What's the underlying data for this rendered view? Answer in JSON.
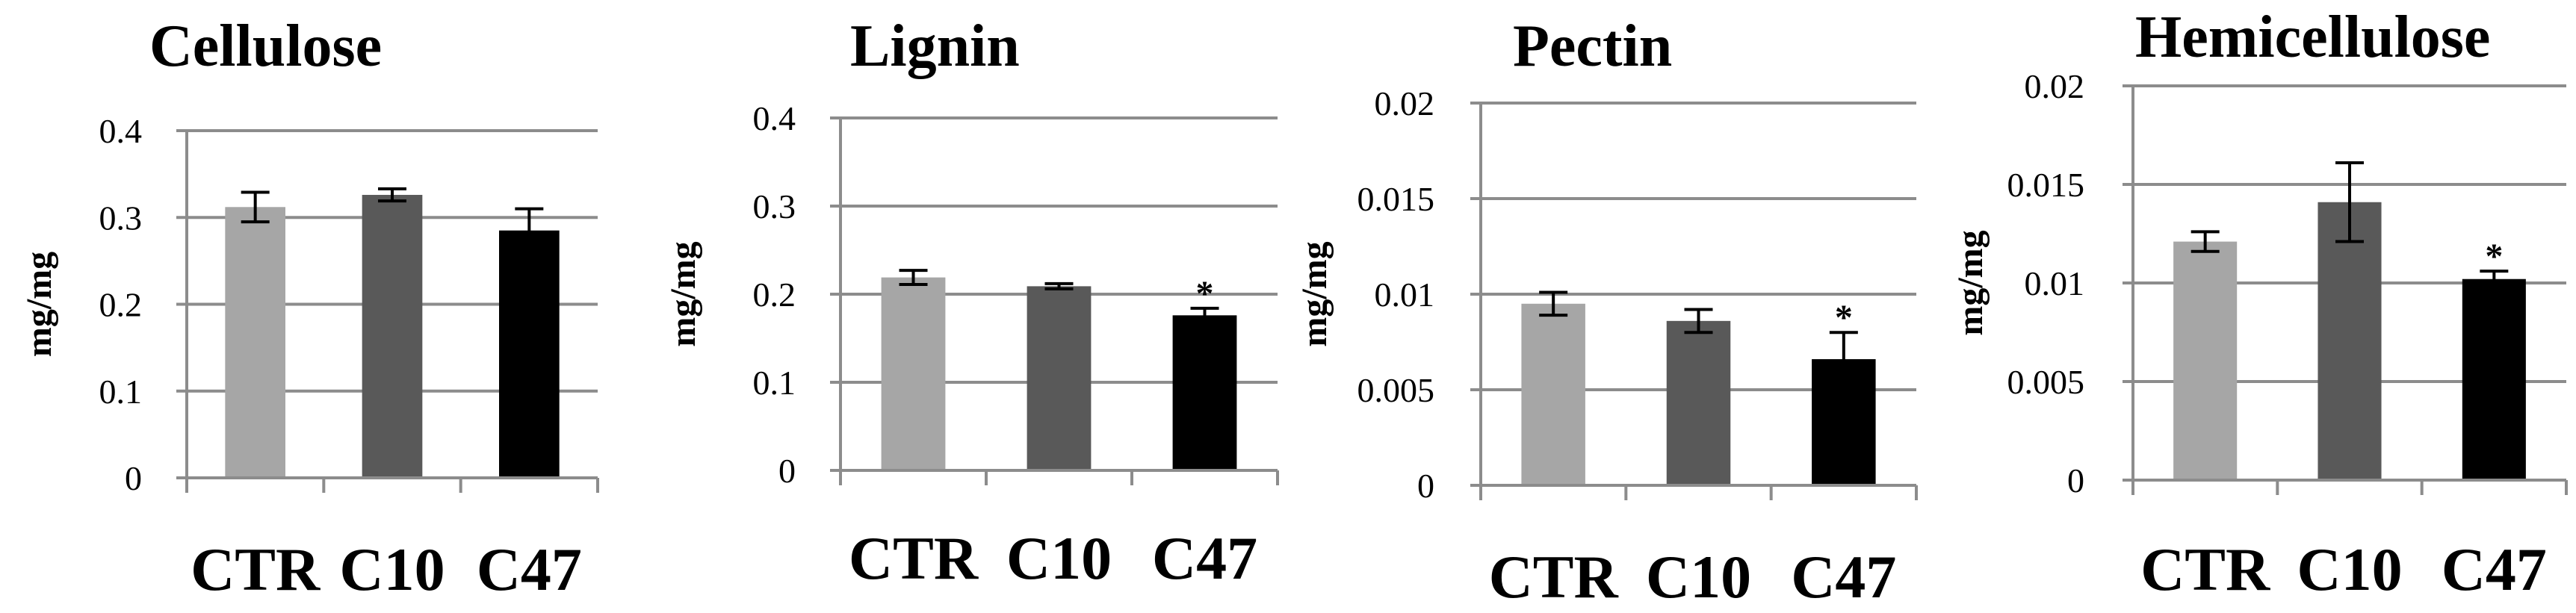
{
  "colors": {
    "CTR": "#a6a6a6",
    "C10": "#595959",
    "C47": "#000000",
    "grid": "#8c8c8c"
  },
  "chart_data": [
    {
      "type": "bar",
      "title": "Cellulose",
      "ylabel": "mg/mg",
      "xlabel": "",
      "categories": [
        "CTR",
        "C10",
        "C47"
      ],
      "values": [
        0.312,
        0.326,
        0.285
      ],
      "errors": [
        0.017,
        0.007,
        0.025
      ],
      "significance": [
        "",
        "",
        ""
      ],
      "ylim": [
        0,
        0.4
      ],
      "yticks": [
        "0",
        "0.1",
        "0.2",
        "0.3",
        "0.4"
      ],
      "grid": true
    },
    {
      "type": "bar",
      "title": "Lignin",
      "ylabel": "mg/mg",
      "xlabel": "",
      "categories": [
        "CTR",
        "C10",
        "C47"
      ],
      "values": [
        0.219,
        0.209,
        0.176
      ],
      "errors": [
        0.008,
        0.003,
        0.008
      ],
      "significance": [
        "",
        "",
        "*"
      ],
      "ylim": [
        0,
        0.4
      ],
      "yticks": [
        "0",
        "0.1",
        "0.2",
        "0.3",
        "0.4"
      ],
      "grid": true
    },
    {
      "type": "bar",
      "title": "Pectin",
      "ylabel": "mg/mg",
      "xlabel": "",
      "categories": [
        "CTR",
        "C10",
        "C47"
      ],
      "values": [
        0.0095,
        0.0086,
        0.0066
      ],
      "errors": [
        0.0006,
        0.0006,
        0.0014
      ],
      "significance": [
        "",
        "",
        "*"
      ],
      "ylim": [
        0,
        0.02
      ],
      "yticks": [
        "0",
        "0.005",
        "0.01",
        "0.015",
        "0.02"
      ],
      "grid": true
    },
    {
      "type": "bar",
      "title": "Hemicellulose",
      "ylabel": "mg/mg",
      "xlabel": "",
      "categories": [
        "CTR",
        "C10",
        "C47"
      ],
      "values": [
        0.0121,
        0.0141,
        0.0102
      ],
      "errors": [
        0.0005,
        0.002,
        0.0004
      ],
      "significance": [
        "",
        "",
        "*"
      ],
      "ylim": [
        0,
        0.02
      ],
      "yticks": [
        "0",
        "0.005",
        "0.01",
        "0.015",
        "0.02"
      ],
      "grid": true
    }
  ]
}
